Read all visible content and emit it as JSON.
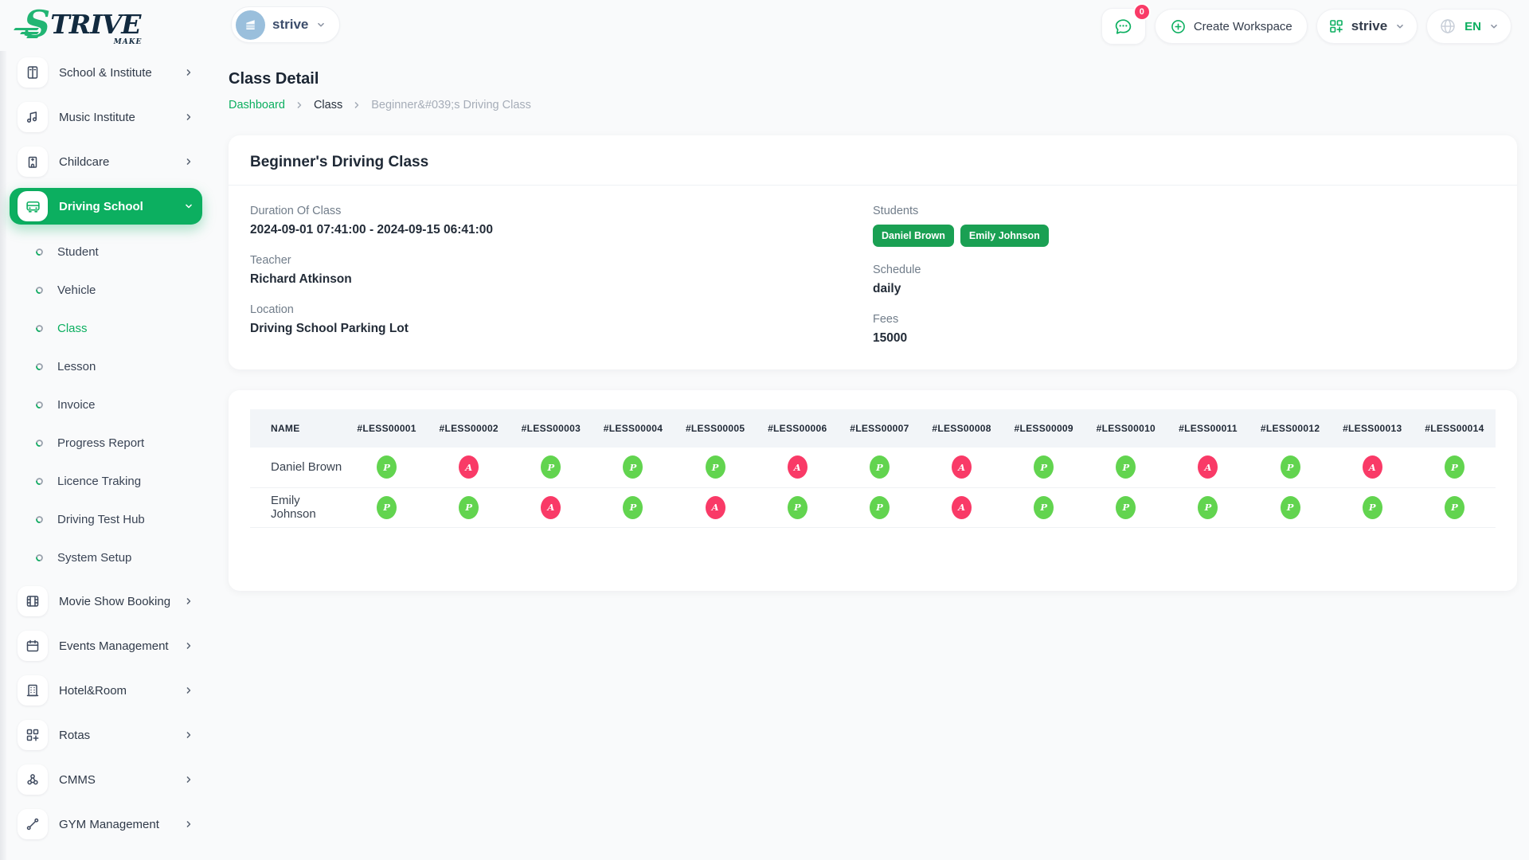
{
  "brand": {
    "logo_s": "S",
    "logo_rest": "TRIVE",
    "logo_sub": "MAKE"
  },
  "topbar": {
    "workspace_selector_label": "strive",
    "chat_badge": "0",
    "create_workspace_label": "Create Workspace",
    "workspace_dropdown_label": "strive",
    "language_label": "EN"
  },
  "sidebar": {
    "groups_top": [
      {
        "label": "School & Institute",
        "icon": "school-icon"
      },
      {
        "label": "Music Institute",
        "icon": "music-icon"
      },
      {
        "label": "Childcare",
        "icon": "childcare-icon"
      },
      {
        "label": "Driving School",
        "icon": "bus-icon",
        "active": true,
        "expanded": true
      }
    ],
    "driving_school_children": [
      {
        "label": "Student"
      },
      {
        "label": "Vehicle"
      },
      {
        "label": "Class",
        "active": true
      },
      {
        "label": "Lesson"
      },
      {
        "label": "Invoice"
      },
      {
        "label": "Progress Report"
      },
      {
        "label": "Licence Traking"
      },
      {
        "label": "Driving Test Hub"
      },
      {
        "label": "System Setup"
      }
    ],
    "groups_bottom": [
      {
        "label": "Movie Show Booking",
        "icon": "film-icon"
      },
      {
        "label": "Events Management",
        "icon": "calendar-icon"
      },
      {
        "label": "Hotel&Room",
        "icon": "hotel-icon"
      },
      {
        "label": "Rotas",
        "icon": "grid-plus-icon"
      },
      {
        "label": "CMMS",
        "icon": "nodes-icon"
      },
      {
        "label": "GYM Management",
        "icon": "dumbbell-icon"
      }
    ]
  },
  "page": {
    "title": "Class Detail",
    "breadcrumb": [
      {
        "label": "Dashboard",
        "style": "link"
      },
      {
        "label": "Class",
        "style": "plain"
      },
      {
        "label": "Beginner&#039;s Driving Class",
        "style": "muted"
      }
    ]
  },
  "detail_card": {
    "title": "Beginner's Driving Class",
    "fields_left": [
      {
        "label": "Duration Of Class",
        "value": "2024-09-01 07:41:00 - 2024-09-15 06:41:00"
      },
      {
        "label": "Teacher",
        "value": "Richard Atkinson"
      },
      {
        "label": "Location",
        "value": "Driving School Parking Lot"
      }
    ],
    "students_label": "Students",
    "students": [
      "Daniel Brown",
      "Emily Johnson"
    ],
    "fields_right": [
      {
        "label": "Schedule",
        "value": "daily"
      },
      {
        "label": "Fees",
        "value": "15000"
      }
    ]
  },
  "attendance_table": {
    "name_header": "NAME",
    "lesson_headers": [
      "#LESS00001",
      "#LESS00002",
      "#LESS00003",
      "#LESS00004",
      "#LESS00005",
      "#LESS00006",
      "#LESS00007",
      "#LESS00008",
      "#LESS00009",
      "#LESS00010",
      "#LESS00011",
      "#LESS00012",
      "#LESS00013",
      "#LESS00014"
    ],
    "rows": [
      {
        "name": "Daniel Brown",
        "marks": [
          "P",
          "A",
          "P",
          "P",
          "P",
          "A",
          "P",
          "A",
          "P",
          "P",
          "A",
          "P",
          "A",
          "P"
        ]
      },
      {
        "name": "Emily Johnson",
        "marks": [
          "P",
          "P",
          "A",
          "P",
          "A",
          "P",
          "P",
          "A",
          "P",
          "P",
          "P",
          "P",
          "P",
          "P"
        ]
      }
    ]
  },
  "colors": {
    "accent": "#0caf60",
    "student_badge": "#1aa053",
    "present": "#62d44f",
    "absent": "#f93a67"
  }
}
